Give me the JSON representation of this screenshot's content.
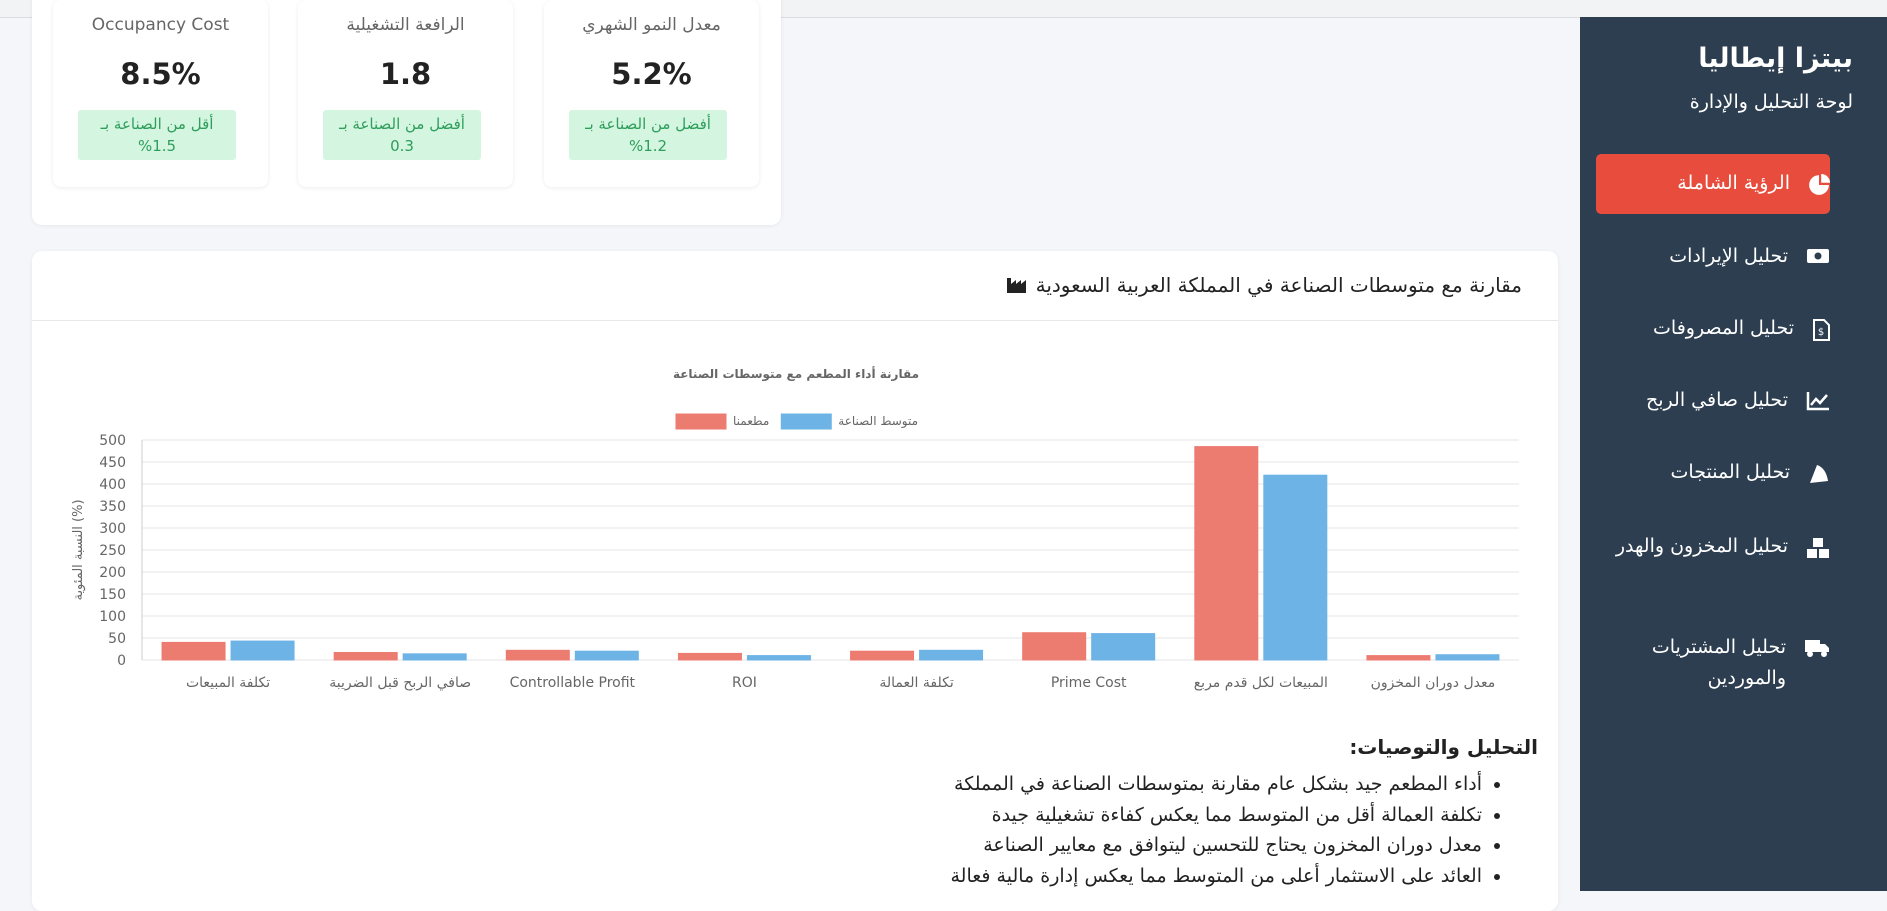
{
  "sidebar": {
    "title": "بيتزا إيطاليا",
    "subtitle": "لوحة التحليل والإدارة",
    "items": [
      "الرؤية الشاملة",
      "تحليل الإيرادات",
      "تحليل المصروفات",
      "تحليل صافي الربح",
      "تحليل المنتجات",
      "تحليل المخزون والهدر",
      "تحليل المشتريات والموردين"
    ]
  },
  "kpis": [
    {
      "title": "Occupancy Cost",
      "value": "8.5%",
      "note": "أقل من الصناعة بـ 1.5%"
    },
    {
      "title": "الرافعة التشغيلية",
      "value": "1.8",
      "note": "أفضل من الصناعة بـ 0.3"
    },
    {
      "title": "معدل النمو الشهري",
      "value": "5.2%",
      "note": "أفضل من الصناعة بـ 1.2%"
    }
  ],
  "section_title": "مقارنة مع متوسطات الصناعة في المملكة العربية السعودية",
  "chart_data": {
    "type": "bar",
    "title": "مقارنة أداء المطعم مع متوسطات الصناعة",
    "y_label": "النسبة المئوية (%)",
    "categories": [
      "تكلفة المبيعات",
      "صافي الربح قبل الضريبة",
      "Controllable Profit",
      "ROI",
      "تكلفة العمالة",
      "Prime Cost",
      "المبيعات لكل قدم مربع",
      "معدل دوران المخزون"
    ],
    "series": [
      {
        "name": "مطعمنا",
        "color": "#ec7b70",
        "values": [
          40,
          17,
          22,
          15,
          20,
          62,
          485,
          10
        ]
      },
      {
        "name": "متوسط الصناعة",
        "color": "#6db3e6",
        "values": [
          43,
          14,
          20,
          10,
          22,
          60,
          420,
          12
        ]
      }
    ],
    "ylim": [
      0,
      500
    ],
    "yticks": [
      0,
      50,
      100,
      150,
      200,
      250,
      300,
      350,
      400,
      450,
      500
    ],
    "grid": true
  },
  "analysis": {
    "title": "التحليل والتوصيات:",
    "items": [
      "أداء المطعم جيد بشكل عام مقارنة بمتوسطات الصناعة في المملكة",
      "تكلفة العمالة أقل من المتوسط مما يعكس كفاءة تشغيلية جيدة",
      "معدل دوران المخزون يحتاج للتحسين ليتوافق مع معايير الصناعة",
      "العائد على الاستثمار أعلى من المتوسط مما يعكس إدارة مالية فعالة"
    ]
  }
}
